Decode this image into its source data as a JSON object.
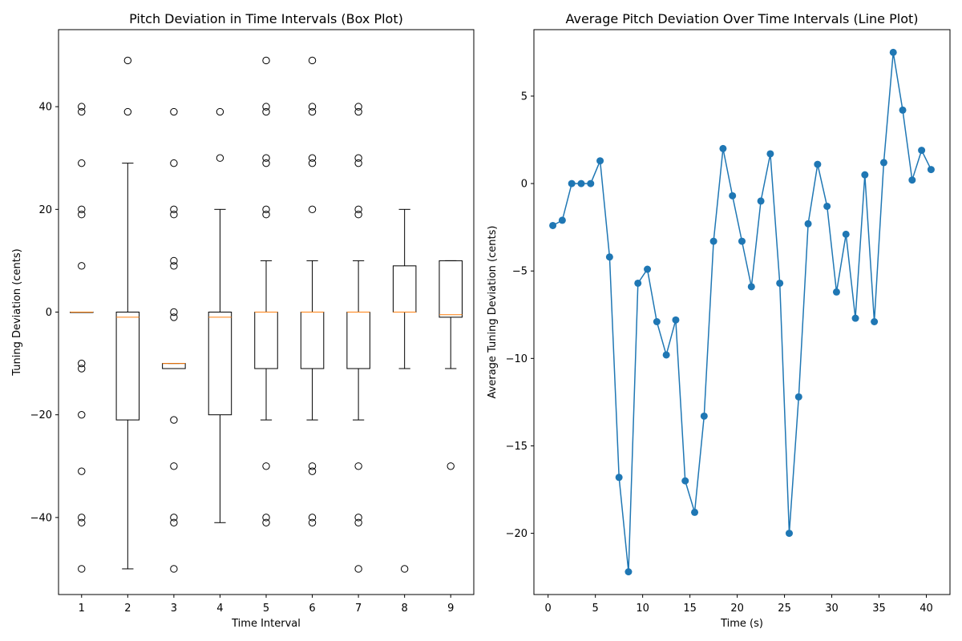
{
  "chart_data": [
    {
      "type": "box",
      "title": "Pitch Deviation in Time Intervals (Box Plot)",
      "xlabel": "Time Interval",
      "ylabel": "Tuning Deviation (cents)",
      "ylim": [
        -55,
        55
      ],
      "yticks": [
        -40,
        -20,
        0,
        20,
        40
      ],
      "ytick_labels": [
        "−40",
        "−20",
        "0",
        "20",
        "40"
      ],
      "categories": [
        "1",
        "2",
        "3",
        "4",
        "5",
        "6",
        "7",
        "8",
        "9"
      ],
      "box_color": "#000000",
      "median_color": "#ff7f0e",
      "boxes": [
        {
          "q1": 0,
          "median": 0,
          "q3": 0,
          "whislo": 0,
          "whishi": 0,
          "fliers": [
            40,
            39,
            29,
            20,
            19,
            9,
            -10,
            -11,
            -20,
            -31,
            -40,
            -41,
            -50
          ]
        },
        {
          "q1": -21,
          "median": -1,
          "q3": 0,
          "whislo": -50,
          "whishi": 29,
          "fliers": [
            49,
            39
          ]
        },
        {
          "q1": -11,
          "median": -10,
          "q3": -10,
          "whislo": -11,
          "whishi": -10,
          "fliers": [
            39,
            29,
            20,
            19,
            10,
            9,
            0,
            -1,
            -21,
            -30,
            -40,
            -41,
            -50
          ]
        },
        {
          "q1": -20,
          "median": -1,
          "q3": 0,
          "whislo": -41,
          "whishi": 20,
          "fliers": [
            39,
            30
          ]
        },
        {
          "q1": -11,
          "median": 0,
          "q3": 0,
          "whislo": -21,
          "whishi": 10,
          "fliers": [
            49,
            40,
            39,
            30,
            29,
            20,
            19,
            -30,
            -40,
            -41
          ]
        },
        {
          "q1": -11,
          "median": 0,
          "q3": 0,
          "whislo": -21,
          "whishi": 10,
          "fliers": [
            49,
            40,
            39,
            30,
            29,
            20,
            -30,
            -31,
            -40,
            -41
          ]
        },
        {
          "q1": -11,
          "median": 0,
          "q3": 0,
          "whislo": -21,
          "whishi": 10,
          "fliers": [
            40,
            39,
            30,
            29,
            20,
            19,
            -30,
            -40,
            -41,
            -50
          ]
        },
        {
          "q1": 0,
          "median": 0,
          "q3": 9,
          "whislo": -11,
          "whishi": 20,
          "fliers": [
            -50
          ]
        },
        {
          "q1": -1,
          "median": -0.5,
          "q3": 10,
          "whislo": -11,
          "whishi": 10,
          "fliers": [
            -30
          ]
        }
      ]
    },
    {
      "type": "line",
      "title": "Average Pitch Deviation Over Time Intervals (Line Plot)",
      "xlabel": "Time (s)",
      "ylabel": "Average Tuning Deviation (cents)",
      "xlim": [
        -1.5,
        42.5
      ],
      "ylim": [
        -23.5,
        8.8
      ],
      "xticks": [
        0,
        5,
        10,
        15,
        20,
        25,
        30,
        35,
        40
      ],
      "xtick_labels": [
        "0",
        "5",
        "10",
        "15",
        "20",
        "25",
        "30",
        "35",
        "40"
      ],
      "yticks": [
        -20,
        -15,
        -10,
        -5,
        0,
        5
      ],
      "ytick_labels": [
        "−20",
        "−15",
        "−10",
        "−5",
        "0",
        "5"
      ],
      "color": "#1f77b4",
      "x": [
        0.5,
        1.5,
        2.5,
        3.5,
        4.5,
        5.5,
        6.5,
        7.5,
        8.5,
        9.5,
        10.5,
        11.5,
        12.5,
        13.5,
        14.5,
        15.5,
        16.5,
        17.5,
        18.5,
        19.5,
        20.5,
        21.5,
        22.5,
        23.5,
        24.5,
        25.5,
        26.5,
        27.5,
        28.5,
        29.5,
        30.5,
        31.5,
        32.5,
        33.5,
        34.5,
        35.5,
        36.5,
        37.5,
        38.5,
        39.5,
        40.5
      ],
      "y": [
        -2.4,
        -2.1,
        0.0,
        0.0,
        0.0,
        1.3,
        -4.2,
        -16.8,
        -22.2,
        -5.7,
        -4.9,
        -7.9,
        -9.8,
        -7.8,
        -17.0,
        -18.8,
        -13.3,
        -3.3,
        2.0,
        -0.7,
        -3.3,
        -5.9,
        -1.0,
        1.7,
        -5.7,
        -20.0,
        -12.2,
        -2.3,
        1.1,
        -1.3,
        -6.2,
        -2.9,
        -7.7,
        0.5,
        -7.9,
        1.2,
        7.5,
        4.2,
        0.2,
        1.9,
        0.8
      ]
    }
  ]
}
